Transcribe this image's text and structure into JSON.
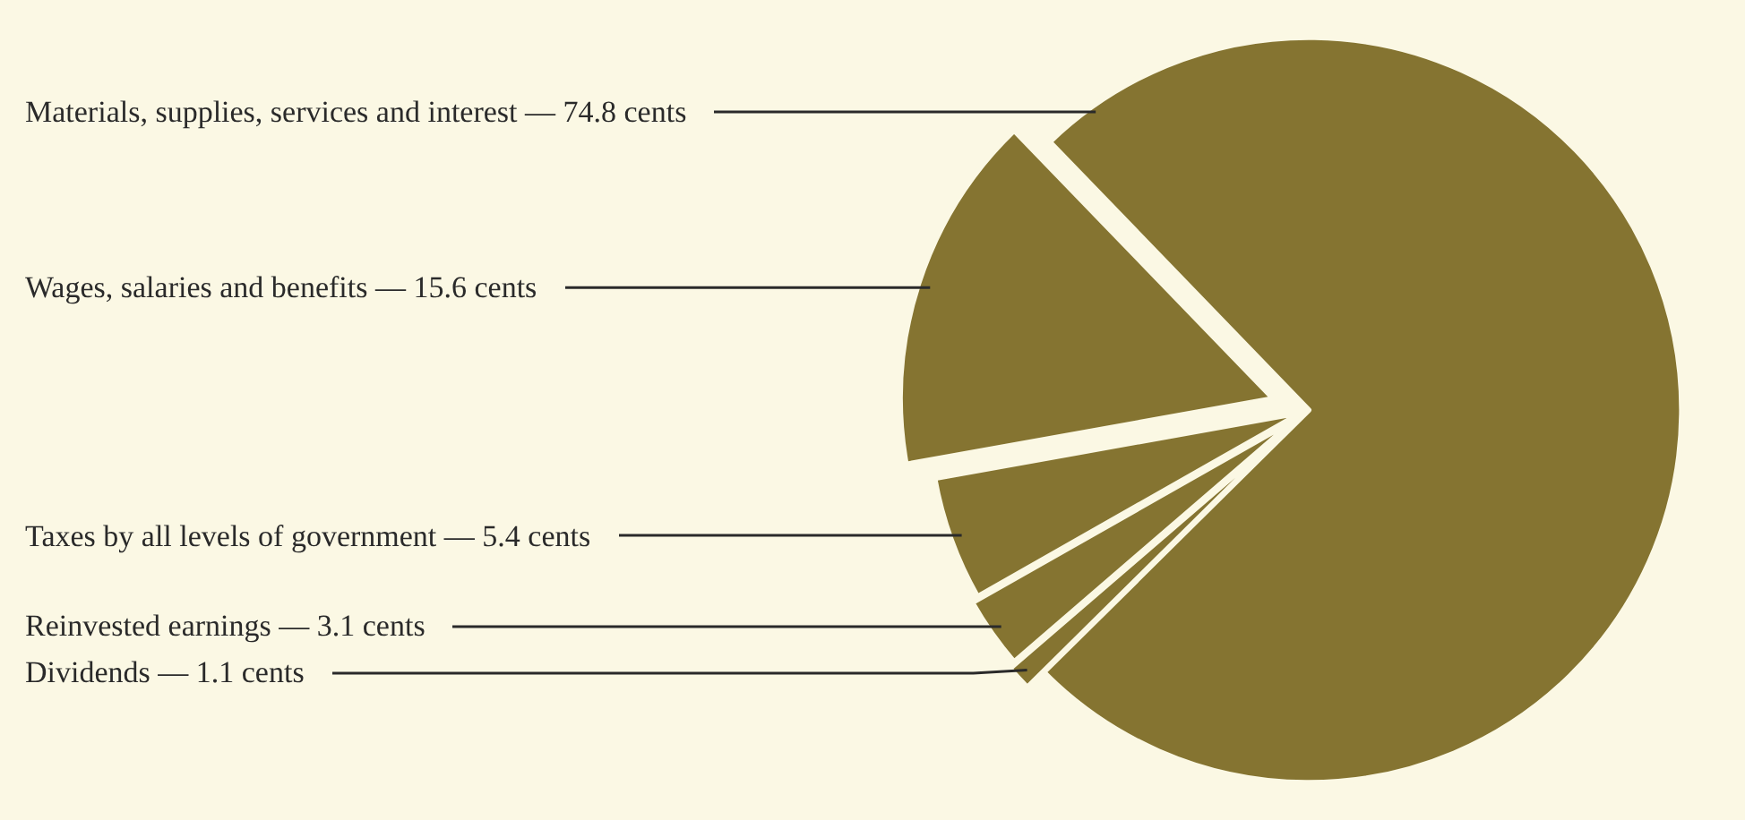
{
  "chart_data": {
    "type": "pie",
    "categories": [
      "Materials, supplies, services and interest",
      "Wages, salaries and benefits",
      "Taxes by all levels of government",
      "Reinvested earnings",
      "Dividends"
    ],
    "values": [
      74.8,
      15.6,
      5.4,
      3.1,
      1.1
    ],
    "value_labels": [
      "— 74.8 cents",
      "— 15.6 cents",
      "— 5.4 cents",
      "— 3.1 cents",
      "— 1.1 cents"
    ],
    "colors": [
      "#857431",
      "#857431",
      "#857431",
      "#857431",
      "#857431"
    ],
    "legend": false
  }
}
